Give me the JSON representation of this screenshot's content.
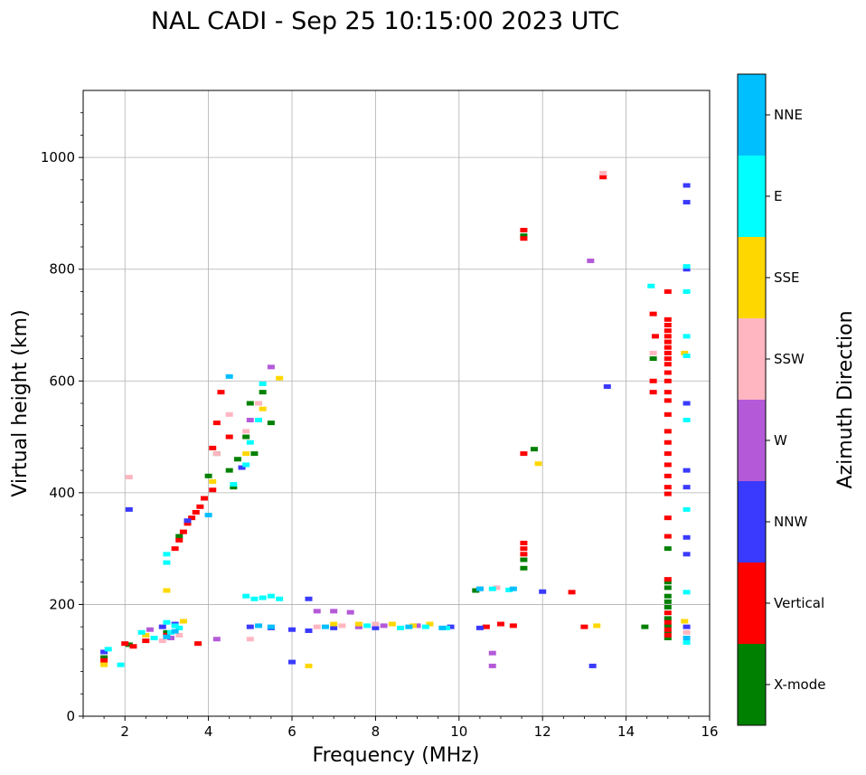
{
  "chart_data": {
    "type": "scatter",
    "title": "NAL CADI - Sep 25 10:15:00 2023 UTC",
    "xlabel": "Frequency (MHz)",
    "ylabel": "Virtual height (km)",
    "xlim": [
      1,
      16
    ],
    "ylim": [
      0,
      1120
    ],
    "xticks": [
      2,
      4,
      6,
      8,
      10,
      12,
      14,
      16
    ],
    "yticks": [
      0,
      200,
      400,
      600,
      800,
      1000
    ],
    "grid": true,
    "colorbar": {
      "title": "Azimuth Direction",
      "categories": [
        {
          "name": "X-mode",
          "color": "#008000"
        },
        {
          "name": "Vertical",
          "color": "#ff0000"
        },
        {
          "name": "NNW",
          "color": "#3a3aff"
        },
        {
          "name": "W",
          "color": "#b45ad8"
        },
        {
          "name": "SSW",
          "color": "#ffb6c1"
        },
        {
          "name": "SSE",
          "color": "#ffd700"
        },
        {
          "name": "E",
          "color": "#00ffff"
        },
        {
          "name": "NNE",
          "color": "#00bfff"
        }
      ]
    },
    "series": [
      {
        "name": "X-mode",
        "points": [
          [
            1.5,
            105
          ],
          [
            2.1,
            128
          ],
          [
            3.0,
            150
          ],
          [
            3.3,
            322
          ],
          [
            4.0,
            430
          ],
          [
            4.2,
            470
          ],
          [
            4.5,
            440
          ],
          [
            4.7,
            460
          ],
          [
            4.9,
            500
          ],
          [
            5.1,
            470
          ],
          [
            5.0,
            560
          ],
          [
            5.3,
            580
          ],
          [
            5.5,
            525
          ],
          [
            4.6,
            410
          ],
          [
            11.55,
            860
          ],
          [
            11.55,
            280
          ],
          [
            11.55,
            265
          ],
          [
            11.8,
            478
          ],
          [
            10.4,
            225
          ],
          [
            14.45,
            160
          ],
          [
            14.65,
            640
          ],
          [
            15.0,
            300
          ],
          [
            15.0,
            240
          ],
          [
            15.0,
            230
          ],
          [
            15.0,
            215
          ],
          [
            15.0,
            205
          ],
          [
            15.0,
            195
          ],
          [
            15.0,
            175
          ],
          [
            15.0,
            162
          ],
          [
            15.0,
            150
          ],
          [
            15.0,
            140
          ]
        ]
      },
      {
        "name": "Vertical",
        "points": [
          [
            1.5,
            100
          ],
          [
            2.0,
            130
          ],
          [
            2.2,
            125
          ],
          [
            2.5,
            135
          ],
          [
            3.0,
            145
          ],
          [
            3.2,
            300
          ],
          [
            3.3,
            315
          ],
          [
            3.4,
            330
          ],
          [
            3.5,
            345
          ],
          [
            3.6,
            355
          ],
          [
            3.7,
            365
          ],
          [
            3.8,
            375
          ],
          [
            3.9,
            390
          ],
          [
            4.1,
            405
          ],
          [
            4.1,
            480
          ],
          [
            4.2,
            525
          ],
          [
            4.5,
            500
          ],
          [
            4.3,
            580
          ],
          [
            3.75,
            130
          ],
          [
            10.65,
            160
          ],
          [
            11.0,
            165
          ],
          [
            11.3,
            162
          ],
          [
            11.55,
            870
          ],
          [
            11.55,
            855
          ],
          [
            11.55,
            470
          ],
          [
            11.55,
            310
          ],
          [
            11.55,
            300
          ],
          [
            11.55,
            290
          ],
          [
            12.7,
            222
          ],
          [
            13.0,
            160
          ],
          [
            13.45,
            965
          ],
          [
            14.65,
            720
          ],
          [
            14.65,
            600
          ],
          [
            14.65,
            580
          ],
          [
            14.7,
            680
          ],
          [
            15.0,
            760
          ],
          [
            15.0,
            710
          ],
          [
            15.0,
            700
          ],
          [
            15.0,
            690
          ],
          [
            15.0,
            680
          ],
          [
            15.0,
            670
          ],
          [
            15.0,
            660
          ],
          [
            15.0,
            650
          ],
          [
            15.0,
            640
          ],
          [
            15.0,
            630
          ],
          [
            15.0,
            615
          ],
          [
            15.0,
            600
          ],
          [
            15.0,
            580
          ],
          [
            15.0,
            565
          ],
          [
            15.0,
            540
          ],
          [
            15.0,
            510
          ],
          [
            15.0,
            490
          ],
          [
            15.0,
            470
          ],
          [
            15.0,
            450
          ],
          [
            15.0,
            430
          ],
          [
            15.0,
            410
          ],
          [
            15.0,
            398
          ],
          [
            15.0,
            355
          ],
          [
            15.0,
            322
          ],
          [
            15.0,
            245
          ],
          [
            15.0,
            185
          ],
          [
            15.0,
            168
          ],
          [
            15.0,
            155
          ],
          [
            15.0,
            145
          ]
        ]
      },
      {
        "name": "NNW",
        "points": [
          [
            1.5,
            115
          ],
          [
            2.1,
            370
          ],
          [
            2.9,
            160
          ],
          [
            3.2,
            165
          ],
          [
            3.5,
            350
          ],
          [
            4.8,
            445
          ],
          [
            5.0,
            160
          ],
          [
            5.5,
            158
          ],
          [
            6.0,
            155
          ],
          [
            6.4,
            153
          ],
          [
            7.0,
            158
          ],
          [
            7.6,
            160
          ],
          [
            8.0,
            158
          ],
          [
            9.8,
            160
          ],
          [
            10.5,
            158
          ],
          [
            12.0,
            223
          ],
          [
            13.2,
            90
          ],
          [
            13.55,
            590
          ],
          [
            15.45,
            950
          ],
          [
            15.45,
            920
          ],
          [
            15.45,
            800
          ],
          [
            15.45,
            560
          ],
          [
            15.45,
            440
          ],
          [
            15.45,
            410
          ],
          [
            15.45,
            320
          ],
          [
            15.45,
            290
          ],
          [
            15.45,
            160
          ],
          [
            6.0,
            97
          ],
          [
            6.4,
            210
          ]
        ]
      },
      {
        "name": "W",
        "points": [
          [
            2.6,
            155
          ],
          [
            3.1,
            140
          ],
          [
            4.2,
            138
          ],
          [
            5.0,
            530
          ],
          [
            5.5,
            625
          ],
          [
            6.6,
            188
          ],
          [
            7.0,
            188
          ],
          [
            7.4,
            186
          ],
          [
            7.6,
            160
          ],
          [
            8.2,
            162
          ],
          [
            9.0,
            162
          ],
          [
            10.5,
            228
          ],
          [
            10.8,
            113
          ],
          [
            10.8,
            90
          ],
          [
            13.15,
            815
          ]
        ]
      },
      {
        "name": "SSW",
        "points": [
          [
            2.1,
            428
          ],
          [
            2.9,
            135
          ],
          [
            3.3,
            145
          ],
          [
            4.2,
            470
          ],
          [
            4.5,
            540
          ],
          [
            4.9,
            510
          ],
          [
            5.2,
            560
          ],
          [
            5.0,
            138
          ],
          [
            6.6,
            160
          ],
          [
            7.2,
            162
          ],
          [
            8.0,
            165
          ],
          [
            10.9,
            230
          ],
          [
            13.45,
            972
          ],
          [
            14.65,
            650
          ],
          [
            15.45,
            150
          ]
        ]
      },
      {
        "name": "SSE",
        "points": [
          [
            1.5,
            92
          ],
          [
            2.5,
            145
          ],
          [
            3.0,
            225
          ],
          [
            3.4,
            170
          ],
          [
            4.1,
            420
          ],
          [
            4.9,
            470
          ],
          [
            5.3,
            550
          ],
          [
            5.7,
            605
          ],
          [
            6.4,
            90
          ],
          [
            7.0,
            165
          ],
          [
            7.6,
            165
          ],
          [
            8.4,
            165
          ],
          [
            8.9,
            162
          ],
          [
            9.3,
            165
          ],
          [
            11.9,
            452
          ],
          [
            13.3,
            162
          ],
          [
            15.4,
            650
          ],
          [
            15.4,
            170
          ]
        ]
      },
      {
        "name": "E",
        "points": [
          [
            1.6,
            120
          ],
          [
            2.4,
            150
          ],
          [
            2.7,
            140
          ],
          [
            3.0,
            168
          ],
          [
            3.1,
            150
          ],
          [
            3.2,
            162
          ],
          [
            3.3,
            158
          ],
          [
            3.0,
            275
          ],
          [
            3.0,
            290
          ],
          [
            4.6,
            415
          ],
          [
            4.9,
            450
          ],
          [
            5.0,
            490
          ],
          [
            5.3,
            595
          ],
          [
            5.2,
            530
          ],
          [
            4.9,
            215
          ],
          [
            5.1,
            210
          ],
          [
            5.3,
            212
          ],
          [
            5.5,
            215
          ],
          [
            5.7,
            210
          ],
          [
            7.8,
            162
          ],
          [
            8.6,
            158
          ],
          [
            9.2,
            160
          ],
          [
            9.7,
            158
          ],
          [
            10.8,
            228
          ],
          [
            11.2,
            226
          ],
          [
            14.6,
            770
          ],
          [
            15.45,
            805
          ],
          [
            15.45,
            760
          ],
          [
            15.45,
            680
          ],
          [
            15.45,
            645
          ],
          [
            15.45,
            530
          ],
          [
            15.45,
            370
          ],
          [
            15.45,
            222
          ],
          [
            15.45,
            132
          ],
          [
            1.9,
            92
          ]
        ]
      },
      {
        "name": "NNE",
        "points": [
          [
            3.0,
            142
          ],
          [
            3.2,
            152
          ],
          [
            4.0,
            360
          ],
          [
            4.5,
            608
          ],
          [
            5.2,
            162
          ],
          [
            5.5,
            160
          ],
          [
            6.8,
            160
          ],
          [
            8.8,
            160
          ],
          [
            9.6,
            158
          ],
          [
            10.5,
            228
          ],
          [
            11.3,
            228
          ],
          [
            15.45,
            140
          ]
        ]
      }
    ]
  }
}
